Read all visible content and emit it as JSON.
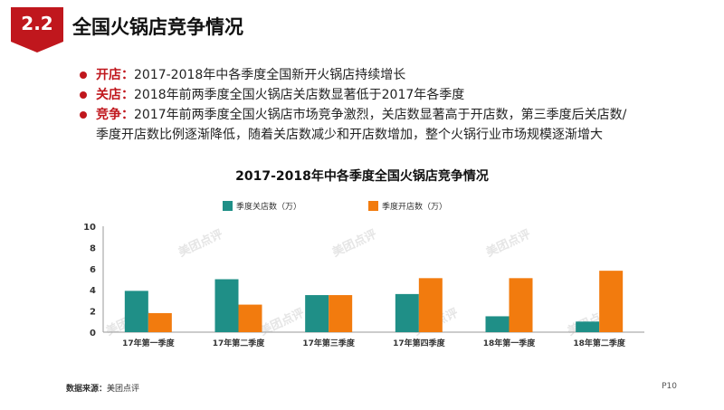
{
  "header": {
    "section_number": "2.2",
    "title": "全国火锅店竞争情况"
  },
  "bullets": [
    {
      "key": "开店",
      "text": "2017-2018年中各季度全国新开火锅店持续增长"
    },
    {
      "key": "关店",
      "text": "2018年前两季度全国火锅店关店数显著低于2017年各季度"
    },
    {
      "key": "竞争",
      "text": "2017年前两季度全国火锅店市场竞争激烈，关店数显著高于开店数，第三季度后关店数/",
      "text2": "季度开店数比例逐渐降低，随着关店数减少和开店数增加，整个火锅行业市场规模逐渐增大"
    }
  ],
  "watermark": "美团点评",
  "footer": {
    "source_label": "数据来源：",
    "source_value": "美团点评",
    "page": "P10"
  },
  "colors": {
    "accent": "#c0171d",
    "series_close": "#1f8f87",
    "series_open": "#f27b0e"
  },
  "chart_data": {
    "type": "bar",
    "title": "2017-2018年中各季度全国火锅店竞争情况",
    "categories": [
      "17年第一季度",
      "17年第二季度",
      "17年第三季度",
      "17年第四季度",
      "18年第一季度",
      "18年第二季度"
    ],
    "series": [
      {
        "name": "季度关店数（万）",
        "values": [
          3.9,
          5.0,
          3.5,
          3.6,
          1.5,
          1.0
        ]
      },
      {
        "name": "季度开店数（万）",
        "values": [
          1.8,
          2.6,
          3.5,
          5.1,
          5.1,
          5.8
        ]
      }
    ],
    "ylim": [
      0,
      10
    ],
    "yticks": [
      0,
      2,
      4,
      6,
      8,
      10
    ],
    "legend_position": "top-left",
    "grid": false
  }
}
